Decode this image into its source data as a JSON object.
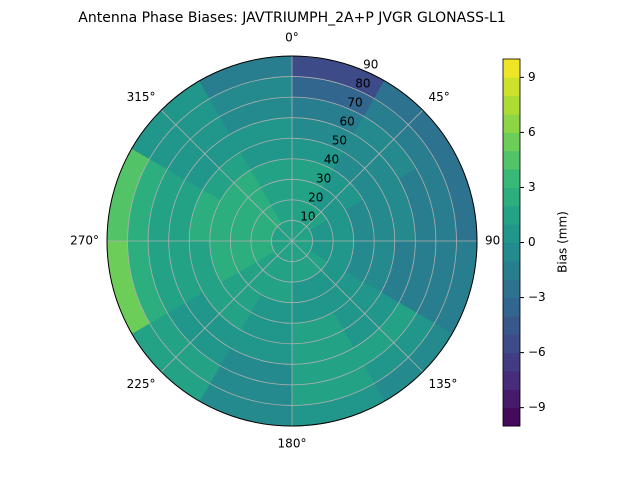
{
  "chart_data": {
    "type": "polar_contour",
    "title": "Antenna Phase Biases: JAVTRIUMPH_2A+P JVGR GLONASS-L1",
    "colormap": "viridis",
    "grid": true,
    "rlim": [
      0,
      90
    ],
    "rticks": [
      10,
      20,
      30,
      40,
      50,
      60,
      70,
      80,
      90
    ],
    "thetaticks": [
      {
        "value": 0,
        "label": "0°"
      },
      {
        "value": 45,
        "label": "45°"
      },
      90,
      {
        "value": 135,
        "label": "135°"
      },
      {
        "value": 180,
        "label": "180°"
      },
      {
        "value": 225,
        "label": "225°"
      },
      {
        "value": 270,
        "label": "270°"
      },
      {
        "value": 315,
        "label": "315°"
      }
    ],
    "azimuth_bins": [
      0,
      30,
      60,
      90,
      120,
      150,
      180,
      210,
      240,
      270,
      300,
      330,
      360
    ],
    "zenith_bins": [
      0,
      10,
      20,
      30,
      40,
      50,
      60,
      70,
      80,
      90
    ],
    "z": [
      [
        1,
        1,
        1,
        1,
        1,
        1,
        1,
        1,
        1,
        1,
        1,
        1
      ],
      [
        1,
        1,
        0,
        0,
        1,
        1,
        1,
        1,
        2,
        2,
        2,
        1
      ],
      [
        1,
        0,
        0,
        0,
        0,
        0,
        1,
        1,
        2,
        2,
        2,
        1
      ],
      [
        1,
        0,
        -1,
        -1,
        0,
        0,
        0,
        1,
        2,
        2,
        2,
        1
      ],
      [
        0,
        -1,
        -1,
        -1,
        0,
        1,
        0,
        1,
        1,
        2,
        1,
        0
      ],
      [
        -1,
        -1,
        -1,
        -2,
        0,
        1,
        0,
        0,
        1,
        1,
        0,
        0
      ],
      [
        -2,
        -1,
        -2,
        -2,
        1,
        1,
        -1,
        0,
        1,
        1,
        0,
        -1
      ],
      [
        -4,
        -2,
        -2,
        -2,
        0,
        1,
        -1,
        1,
        2,
        2,
        0,
        -1
      ],
      [
        -6,
        -3,
        -3,
        -2,
        -1,
        0,
        -1,
        1,
        5,
        4,
        0,
        -2
      ]
    ],
    "levels": [
      -10,
      -9,
      -8,
      -7,
      -6,
      -5,
      -4,
      -3,
      -2,
      -1,
      0,
      1,
      2,
      3,
      4,
      5,
      6,
      7,
      8,
      9,
      10
    ],
    "colorbar": {
      "label": "Bias (mm)",
      "clim": [
        -10,
        10
      ],
      "ticks": [
        {
          "value": -9,
          "label": "−9"
        },
        {
          "value": -6,
          "label": "−6"
        },
        {
          "value": -3,
          "label": "−3"
        },
        0,
        3,
        6,
        9
      ]
    }
  }
}
